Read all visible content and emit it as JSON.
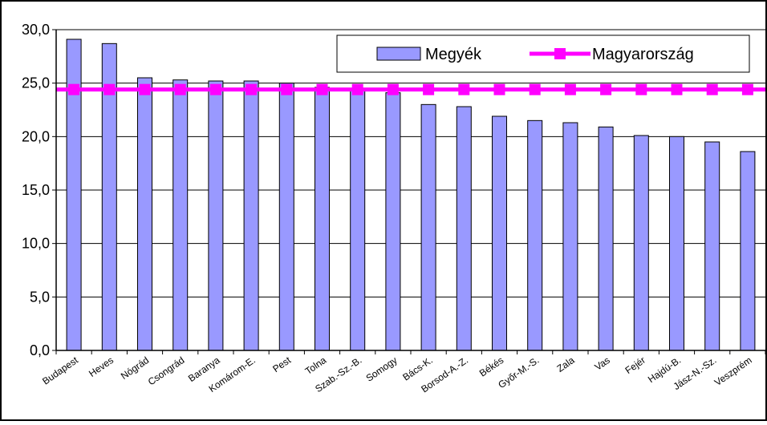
{
  "chart_data": {
    "type": "bar",
    "categories": [
      "Budapest",
      "Heves",
      "Nógrád",
      "Csongrád",
      "Baranya",
      "Komárom-E.",
      "Pest",
      "Tolna",
      "Szab.-Sz.-B.",
      "Somogy",
      "Bács-K.",
      "Borsod-A.-Z.",
      "Békés",
      "Győr-M.-S.",
      "Zala",
      "Vas",
      "Fejér",
      "Hajdú-B.",
      "Jász-N.-Sz.",
      "Veszprém"
    ],
    "series": [
      {
        "name": "Megyék",
        "type": "bar",
        "color": "#9999ff",
        "values": [
          29.1,
          28.7,
          25.5,
          25.3,
          25.2,
          25.2,
          25.0,
          24.6,
          24.5,
          24.1,
          23.0,
          22.8,
          21.9,
          21.5,
          21.3,
          20.9,
          20.1,
          20.0,
          19.5,
          18.6
        ]
      },
      {
        "name": "Magyarország",
        "type": "line",
        "color": "#ff00ff",
        "marker": "square",
        "values": [
          24.4,
          24.4,
          24.4,
          24.4,
          24.4,
          24.4,
          24.4,
          24.4,
          24.4,
          24.4,
          24.4,
          24.4,
          24.4,
          24.4,
          24.4,
          24.4,
          24.4,
          24.4,
          24.4,
          24.4
        ]
      }
    ],
    "yticks": [
      "0,0",
      "5,0",
      "10,0",
      "15,0",
      "20,0",
      "25,0",
      "30,0"
    ],
    "ylim": [
      0,
      30
    ],
    "grid": "horizontal",
    "legend": "top-right",
    "title": "",
    "xlabel": "",
    "ylabel": ""
  }
}
